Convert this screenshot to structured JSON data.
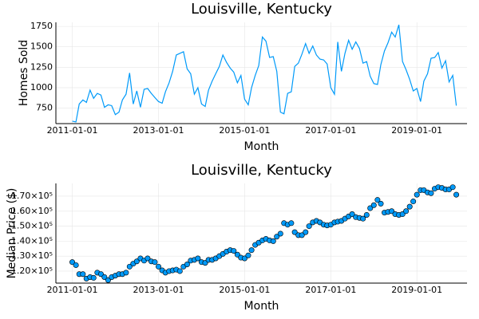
{
  "chart_data": [
    {
      "type": "line",
      "title": "Louisville, Kentucky",
      "x_label": "Month",
      "y_label": "Homes Sold",
      "color": "#009af9",
      "grid": true,
      "x": [
        "2011-01-01",
        "2011-02-01",
        "2011-03-01",
        "2011-04-01",
        "2011-05-01",
        "2011-06-01",
        "2011-07-01",
        "2011-08-01",
        "2011-09-01",
        "2011-10-01",
        "2011-11-01",
        "2011-12-01",
        "2012-01-01",
        "2012-02-01",
        "2012-03-01",
        "2012-04-01",
        "2012-05-01",
        "2012-06-01",
        "2012-07-01",
        "2012-08-01",
        "2012-09-01",
        "2012-10-01",
        "2012-11-01",
        "2012-12-01",
        "2013-01-01",
        "2013-02-01",
        "2013-03-01",
        "2013-04-01",
        "2013-05-01",
        "2013-06-01",
        "2013-07-01",
        "2013-08-01",
        "2013-09-01",
        "2013-10-01",
        "2013-11-01",
        "2013-12-01",
        "2014-01-01",
        "2014-02-01",
        "2014-03-01",
        "2014-04-01",
        "2014-05-01",
        "2014-06-01",
        "2014-07-01",
        "2014-08-01",
        "2014-09-01",
        "2014-10-01",
        "2014-11-01",
        "2014-12-01",
        "2015-01-01",
        "2015-02-01",
        "2015-03-01",
        "2015-04-01",
        "2015-05-01",
        "2015-06-01",
        "2015-07-01",
        "2015-08-01",
        "2015-09-01",
        "2015-10-01",
        "2015-11-01",
        "2015-12-01",
        "2016-01-01",
        "2016-02-01",
        "2016-03-01",
        "2016-04-01",
        "2016-05-01",
        "2016-06-01",
        "2016-07-01",
        "2016-08-01",
        "2016-09-01",
        "2016-10-01",
        "2016-11-01",
        "2016-12-01",
        "2017-01-01",
        "2017-02-01",
        "2017-03-01",
        "2017-04-01",
        "2017-05-01",
        "2017-06-01",
        "2017-07-01",
        "2017-08-01",
        "2017-09-01",
        "2017-10-01",
        "2017-11-01",
        "2017-12-01",
        "2018-01-01",
        "2018-02-01",
        "2018-03-01",
        "2018-04-01",
        "2018-05-01",
        "2018-06-01",
        "2018-07-01",
        "2018-08-01",
        "2018-09-01",
        "2018-10-01",
        "2018-11-01",
        "2018-12-01",
        "2019-01-01",
        "2019-02-01",
        "2019-03-01",
        "2019-04-01",
        "2019-05-01",
        "2019-06-01",
        "2019-07-01",
        "2019-08-01",
        "2019-09-01",
        "2019-10-01",
        "2019-11-01",
        "2019-12-01"
      ],
      "values": [
        590,
        580,
        800,
        850,
        820,
        970,
        870,
        930,
        910,
        760,
        790,
        780,
        670,
        700,
        850,
        920,
        1180,
        800,
        960,
        760,
        980,
        990,
        930,
        880,
        830,
        810,
        950,
        1060,
        1200,
        1400,
        1420,
        1440,
        1230,
        1170,
        920,
        1000,
        800,
        770,
        970,
        1080,
        1170,
        1260,
        1400,
        1310,
        1240,
        1190,
        1060,
        1150,
        860,
        790,
        1000,
        1150,
        1270,
        1620,
        1570,
        1370,
        1380,
        1200,
        700,
        680,
        930,
        950,
        1260,
        1300,
        1410,
        1540,
        1420,
        1510,
        1400,
        1350,
        1340,
        1290,
        1000,
        920,
        1560,
        1200,
        1420,
        1580,
        1470,
        1560,
        1480,
        1300,
        1320,
        1140,
        1050,
        1040,
        1280,
        1450,
        1550,
        1680,
        1620,
        1770,
        1320,
        1220,
        1100,
        960,
        990,
        830,
        1080,
        1170,
        1360,
        1370,
        1430,
        1240,
        1330,
        1070,
        1150,
        780
      ],
      "xlim": [
        "2010-08-15",
        "2020-03-01"
      ],
      "xticks": [
        "2011-01-01",
        "2013-01-01",
        "2015-01-01",
        "2017-01-01",
        "2019-01-01"
      ],
      "ylim": [
        560,
        1800
      ],
      "yticks": [
        750,
        1000,
        1250,
        1500,
        1750
      ]
    },
    {
      "type": "scatter",
      "title": "Louisville, Kentucky",
      "x_label": "Month",
      "y_label": "Median Price ($)",
      "color": "#009af9",
      "grid": true,
      "x": [
        "2011-01-01",
        "2011-02-01",
        "2011-03-01",
        "2011-04-01",
        "2011-05-01",
        "2011-06-01",
        "2011-07-01",
        "2011-08-01",
        "2011-09-01",
        "2011-10-01",
        "2011-11-01",
        "2011-12-01",
        "2012-01-01",
        "2012-02-01",
        "2012-03-01",
        "2012-04-01",
        "2012-05-01",
        "2012-06-01",
        "2012-07-01",
        "2012-08-01",
        "2012-09-01",
        "2012-10-01",
        "2012-11-01",
        "2012-12-01",
        "2013-01-01",
        "2013-02-01",
        "2013-03-01",
        "2013-04-01",
        "2013-05-01",
        "2013-06-01",
        "2013-07-01",
        "2013-08-01",
        "2013-09-01",
        "2013-10-01",
        "2013-11-01",
        "2013-12-01",
        "2014-01-01",
        "2014-02-01",
        "2014-03-01",
        "2014-04-01",
        "2014-05-01",
        "2014-06-01",
        "2014-07-01",
        "2014-08-01",
        "2014-09-01",
        "2014-10-01",
        "2014-11-01",
        "2014-12-01",
        "2015-01-01",
        "2015-02-01",
        "2015-03-01",
        "2015-04-01",
        "2015-05-01",
        "2015-06-01",
        "2015-07-01",
        "2015-08-01",
        "2015-09-01",
        "2015-10-01",
        "2015-11-01",
        "2015-12-01",
        "2016-01-01",
        "2016-02-01",
        "2016-03-01",
        "2016-04-01",
        "2016-05-01",
        "2016-06-01",
        "2016-07-01",
        "2016-08-01",
        "2016-09-01",
        "2016-10-01",
        "2016-11-01",
        "2016-12-01",
        "2017-01-01",
        "2017-02-01",
        "2017-03-01",
        "2017-04-01",
        "2017-05-01",
        "2017-06-01",
        "2017-07-01",
        "2017-08-01",
        "2017-09-01",
        "2017-10-01",
        "2017-11-01",
        "2017-12-01",
        "2018-01-01",
        "2018-02-01",
        "2018-03-01",
        "2018-04-01",
        "2018-05-01",
        "2018-06-01",
        "2018-07-01",
        "2018-08-01",
        "2018-09-01",
        "2018-10-01",
        "2018-11-01",
        "2018-12-01",
        "2019-01-01",
        "2019-02-01",
        "2019-03-01",
        "2019-04-01",
        "2019-05-01",
        "2019-06-01",
        "2019-07-01",
        "2019-08-01",
        "2019-09-01",
        "2019-10-01",
        "2019-11-01",
        "2019-12-01"
      ],
      "values": [
        126000,
        124000,
        118000,
        118000,
        115000,
        116000,
        115500,
        119000,
        118000,
        116000,
        114000,
        116000,
        117000,
        118000,
        118000,
        119000,
        123000,
        125000,
        126500,
        128500,
        127000,
        128500,
        126500,
        126000,
        123000,
        120500,
        119000,
        120000,
        120500,
        121000,
        120000,
        123000,
        124500,
        127000,
        127500,
        128500,
        126000,
        125500,
        127500,
        127500,
        128500,
        130000,
        131500,
        133000,
        134000,
        133500,
        131000,
        129000,
        128500,
        130500,
        134000,
        137500,
        139000,
        140500,
        141500,
        140500,
        140000,
        143000,
        145000,
        152000,
        151000,
        152000,
        146000,
        144000,
        144000,
        146000,
        150000,
        152500,
        153500,
        152500,
        151000,
        150500,
        151000,
        152500,
        153000,
        153500,
        155000,
        156500,
        158000,
        156000,
        155500,
        155000,
        157500,
        162000,
        164000,
        167500,
        165000,
        159000,
        159500,
        160000,
        158000,
        157500,
        158000,
        160000,
        163000,
        166500,
        171000,
        174000,
        174000,
        172500,
        172000,
        175000,
        176000,
        175500,
        174500,
        174500,
        176000,
        171000
      ],
      "xlim": [
        "2010-08-15",
        "2020-03-01"
      ],
      "xticks": [
        "2011-01-01",
        "2013-01-01",
        "2015-01-01",
        "2017-01-01",
        "2019-01-01"
      ],
      "ylim": [
        112000,
        178500
      ],
      "yticks": [
        {
          "value": 120000,
          "label": "1.20×10⁵"
        },
        {
          "value": 130000,
          "label": "1.30×10⁵"
        },
        {
          "value": 140000,
          "label": "1.40×10⁵"
        },
        {
          "value": 150000,
          "label": "1.50×10⁵"
        },
        {
          "value": 160000,
          "label": "1.60×10⁵"
        },
        {
          "value": 170000,
          "label": "1.70×10⁵"
        }
      ]
    }
  ]
}
